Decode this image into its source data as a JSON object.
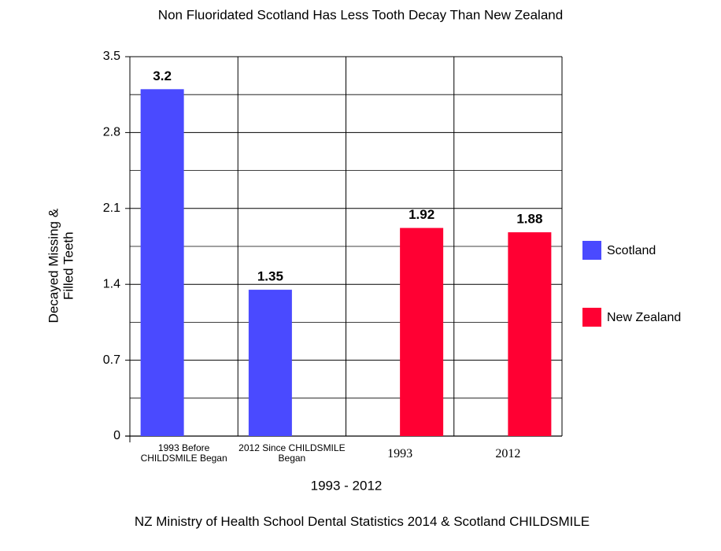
{
  "chart_data": {
    "type": "bar",
    "title": "Non Fluoridated Scotland Has Less Tooth Decay Than New Zealand",
    "ylabel": "Decayed Missing & Filled Teeth",
    "xlabel": "1993 - 2012",
    "footnote": "NZ Ministry of Health School Dental Statistics 2014 & Scotland CHILDSMILE",
    "categories": [
      "1993 Before CHILDSMILE Began",
      "2012 Since CHILDSMILE Began",
      "1993",
      "2012"
    ],
    "series": [
      {
        "name": "Scotland",
        "color": "#4a4aff",
        "values": [
          3.2,
          1.35,
          null,
          null
        ]
      },
      {
        "name": "New Zealand",
        "color": "#ff0033",
        "values": [
          null,
          null,
          1.92,
          1.88
        ]
      }
    ],
    "ylim": [
      0,
      3.5
    ],
    "yticks": [
      0,
      0.7,
      1.4,
      2.1,
      2.8,
      3.5
    ],
    "yticks_minor": [
      0.35,
      1.05,
      1.75,
      2.45,
      3.15
    ],
    "grid": true,
    "legend": "right"
  }
}
